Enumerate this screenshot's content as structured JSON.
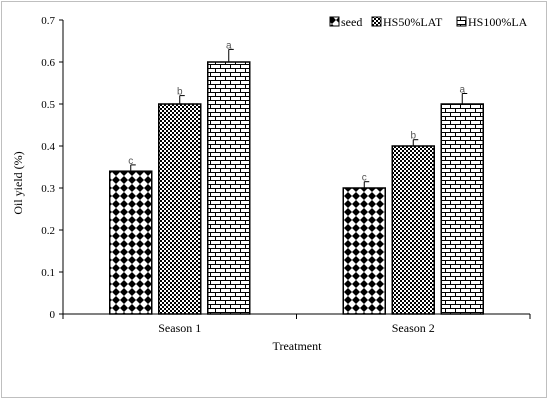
{
  "chart_data": {
    "type": "bar",
    "categories": [
      "Season 1",
      "Season 2"
    ],
    "series": [
      {
        "name": "seed",
        "values": [
          0.34,
          0.3
        ],
        "errors": [
          0.015,
          0.015
        ],
        "labels": [
          "c",
          "c"
        ],
        "pattern": "diamond"
      },
      {
        "name": "HS50%LAT",
        "values": [
          0.5,
          0.4
        ],
        "errors": [
          0.02,
          0.015
        ],
        "labels": [
          "b",
          "b"
        ],
        "pattern": "dots"
      },
      {
        "name": "HS100%LA",
        "values": [
          0.6,
          0.5
        ],
        "errors": [
          0.03,
          0.025
        ],
        "labels": [
          "a",
          "a"
        ],
        "pattern": "brick"
      }
    ],
    "xlabel": "Treatment",
    "ylabel": "Oil yield (%)",
    "ylim": [
      0,
      0.7
    ],
    "yticks": [
      "0",
      "0.1",
      "0.2",
      "0.3",
      "0.4",
      "0.5",
      "0.6",
      "0.7"
    ],
    "legend_position": "top-right",
    "grid": false,
    "colors": {
      "stroke": "#000000",
      "fill": "#ffffff",
      "data_label": "#555555"
    }
  }
}
